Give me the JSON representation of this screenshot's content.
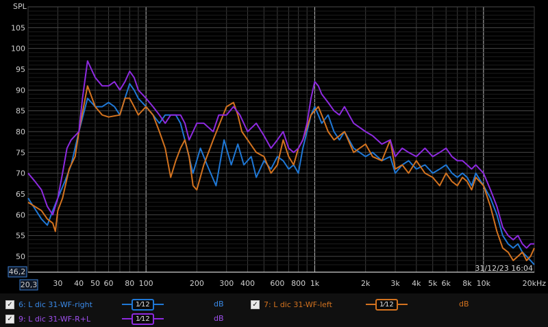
{
  "chart_data": {
    "type": "line",
    "ylabel": "SPL",
    "x_scale": "log",
    "xlim": [
      20,
      20000
    ],
    "ylim": [
      46.2,
      110
    ],
    "x_ticks": [
      {
        "v": 30,
        "label": "30"
      },
      {
        "v": 40,
        "label": "40"
      },
      {
        "v": 50,
        "label": "50"
      },
      {
        "v": 60,
        "label": "60"
      },
      {
        "v": 80,
        "label": "80"
      },
      {
        "v": 100,
        "label": "100"
      },
      {
        "v": 200,
        "label": "200"
      },
      {
        "v": 300,
        "label": "300"
      },
      {
        "v": 400,
        "label": "400"
      },
      {
        "v": 600,
        "label": "600"
      },
      {
        "v": 800,
        "label": "800"
      },
      {
        "v": 1000,
        "label": "1k"
      },
      {
        "v": 2000,
        "label": "2k"
      },
      {
        "v": 3000,
        "label": "3k"
      },
      {
        "v": 4000,
        "label": "4k"
      },
      {
        "v": 5000,
        "label": "5k"
      },
      {
        "v": 6000,
        "label": "6k"
      },
      {
        "v": 8000,
        "label": "8k"
      },
      {
        "v": 10000,
        "label": "10k"
      },
      {
        "v": 20000,
        "label": "20kHz"
      }
    ],
    "y_ticks": [
      50,
      55,
      60,
      65,
      70,
      75,
      80,
      85,
      90,
      95,
      100,
      105
    ],
    "x_min_label": "20,3",
    "y_min_label": "46,2",
    "timestamp": "31/12/23 16:04",
    "grid": true,
    "series": [
      {
        "name": "6: L dic 31-WF-right",
        "color": "#1f78d6",
        "points": [
          [
            20,
            64
          ],
          [
            24,
            59
          ],
          [
            26,
            57.5
          ],
          [
            28,
            61
          ],
          [
            30,
            64
          ],
          [
            33,
            68
          ],
          [
            36,
            72
          ],
          [
            40,
            80
          ],
          [
            45,
            88
          ],
          [
            50,
            86
          ],
          [
            55,
            86
          ],
          [
            60,
            87
          ],
          [
            65,
            86
          ],
          [
            70,
            84
          ],
          [
            75,
            88
          ],
          [
            80,
            91.5
          ],
          [
            85,
            90
          ],
          [
            90,
            88
          ],
          [
            100,
            86
          ],
          [
            110,
            84
          ],
          [
            120,
            82
          ],
          [
            130,
            84
          ],
          [
            150,
            84
          ],
          [
            160,
            82
          ],
          [
            170,
            78
          ],
          [
            190,
            70
          ],
          [
            210,
            76
          ],
          [
            230,
            72
          ],
          [
            260,
            67
          ],
          [
            290,
            78
          ],
          [
            320,
            72
          ],
          [
            350,
            77
          ],
          [
            380,
            72
          ],
          [
            420,
            74
          ],
          [
            450,
            69
          ],
          [
            500,
            73
          ],
          [
            550,
            71
          ],
          [
            600,
            74
          ],
          [
            650,
            73
          ],
          [
            700,
            71
          ],
          [
            750,
            72
          ],
          [
            800,
            70
          ],
          [
            850,
            76
          ],
          [
            900,
            80
          ],
          [
            950,
            84
          ],
          [
            1000,
            86
          ],
          [
            1050,
            84
          ],
          [
            1100,
            82
          ],
          [
            1200,
            84
          ],
          [
            1300,
            80
          ],
          [
            1400,
            78
          ],
          [
            1500,
            80
          ],
          [
            1700,
            76
          ],
          [
            2000,
            74
          ],
          [
            2200,
            75
          ],
          [
            2500,
            73
          ],
          [
            2800,
            74
          ],
          [
            3000,
            70
          ],
          [
            3300,
            72
          ],
          [
            3600,
            73
          ],
          [
            4000,
            71
          ],
          [
            4500,
            72
          ],
          [
            5000,
            70
          ],
          [
            5500,
            71
          ],
          [
            6000,
            72
          ],
          [
            6500,
            70
          ],
          [
            7000,
            69
          ],
          [
            7500,
            70
          ],
          [
            8000,
            69
          ],
          [
            8500,
            67
          ],
          [
            9000,
            70
          ],
          [
            10000,
            67
          ],
          [
            11000,
            64
          ],
          [
            12000,
            60
          ],
          [
            13000,
            55
          ],
          [
            14000,
            53
          ],
          [
            15000,
            52
          ],
          [
            16000,
            53
          ],
          [
            17000,
            51
          ],
          [
            18000,
            50
          ],
          [
            19000,
            49
          ],
          [
            20000,
            48
          ]
        ]
      },
      {
        "name": "7: L dic 31-WF-left",
        "color": "#d4731f",
        "points": [
          [
            20,
            63
          ],
          [
            24,
            61
          ],
          [
            26,
            59
          ],
          [
            28,
            58
          ],
          [
            29,
            56
          ],
          [
            30,
            61
          ],
          [
            32,
            64
          ],
          [
            35,
            71
          ],
          [
            38,
            74
          ],
          [
            40,
            80
          ],
          [
            45,
            91
          ],
          [
            50,
            86
          ],
          [
            55,
            84
          ],
          [
            60,
            83.5
          ],
          [
            70,
            84
          ],
          [
            75,
            88
          ],
          [
            80,
            88
          ],
          [
            85,
            86
          ],
          [
            90,
            84
          ],
          [
            100,
            86
          ],
          [
            110,
            84
          ],
          [
            120,
            80
          ],
          [
            130,
            76
          ],
          [
            140,
            69
          ],
          [
            150,
            73
          ],
          [
            160,
            76
          ],
          [
            170,
            78
          ],
          [
            180,
            74
          ],
          [
            190,
            67
          ],
          [
            200,
            66
          ],
          [
            220,
            72
          ],
          [
            250,
            78
          ],
          [
            280,
            83
          ],
          [
            300,
            86
          ],
          [
            330,
            87
          ],
          [
            350,
            84
          ],
          [
            370,
            80
          ],
          [
            400,
            78
          ],
          [
            450,
            75
          ],
          [
            500,
            74
          ],
          [
            550,
            70
          ],
          [
            600,
            72
          ],
          [
            650,
            78
          ],
          [
            700,
            74
          ],
          [
            750,
            72
          ],
          [
            800,
            76
          ],
          [
            850,
            78
          ],
          [
            900,
            81
          ],
          [
            950,
            84
          ],
          [
            1000,
            85
          ],
          [
            1050,
            86
          ],
          [
            1100,
            84
          ],
          [
            1200,
            80
          ],
          [
            1300,
            78
          ],
          [
            1400,
            79
          ],
          [
            1500,
            80
          ],
          [
            1700,
            75
          ],
          [
            2000,
            77
          ],
          [
            2200,
            74
          ],
          [
            2500,
            73
          ],
          [
            2800,
            78
          ],
          [
            3000,
            71
          ],
          [
            3300,
            72
          ],
          [
            3600,
            70
          ],
          [
            4000,
            73
          ],
          [
            4500,
            70
          ],
          [
            5000,
            69
          ],
          [
            5500,
            67
          ],
          [
            6000,
            70
          ],
          [
            6500,
            68
          ],
          [
            7000,
            67
          ],
          [
            7500,
            69
          ],
          [
            8000,
            68
          ],
          [
            8500,
            66
          ],
          [
            9000,
            69
          ],
          [
            10000,
            67
          ],
          [
            11000,
            62
          ],
          [
            12000,
            56
          ],
          [
            13000,
            52
          ],
          [
            14000,
            51
          ],
          [
            15000,
            49
          ],
          [
            16000,
            50
          ],
          [
            17000,
            51
          ],
          [
            18000,
            49
          ],
          [
            19000,
            50
          ],
          [
            20000,
            52
          ]
        ]
      },
      {
        "name": "9: L dic 31-WF-R+L",
        "color": "#8e2ae0",
        "points": [
          [
            20,
            70
          ],
          [
            22,
            68
          ],
          [
            24,
            66
          ],
          [
            26,
            62
          ],
          [
            28,
            60
          ],
          [
            30,
            64
          ],
          [
            32,
            70
          ],
          [
            34,
            76
          ],
          [
            36,
            78
          ],
          [
            40,
            80
          ],
          [
            42,
            88
          ],
          [
            45,
            97
          ],
          [
            50,
            93
          ],
          [
            55,
            91
          ],
          [
            60,
            91
          ],
          [
            65,
            92
          ],
          [
            70,
            90
          ],
          [
            75,
            92
          ],
          [
            80,
            94.5
          ],
          [
            85,
            93
          ],
          [
            90,
            90
          ],
          [
            100,
            88
          ],
          [
            110,
            86
          ],
          [
            120,
            84
          ],
          [
            130,
            82
          ],
          [
            140,
            84
          ],
          [
            150,
            84
          ],
          [
            160,
            84
          ],
          [
            170,
            82
          ],
          [
            180,
            78
          ],
          [
            190,
            80
          ],
          [
            200,
            82
          ],
          [
            220,
            82
          ],
          [
            250,
            80
          ],
          [
            270,
            84
          ],
          [
            300,
            84
          ],
          [
            330,
            86
          ],
          [
            360,
            84
          ],
          [
            400,
            80
          ],
          [
            450,
            82
          ],
          [
            500,
            79
          ],
          [
            550,
            76
          ],
          [
            600,
            78
          ],
          [
            650,
            80
          ],
          [
            700,
            76
          ],
          [
            750,
            75
          ],
          [
            800,
            76
          ],
          [
            850,
            78
          ],
          [
            900,
            82
          ],
          [
            950,
            88
          ],
          [
            1000,
            92
          ],
          [
            1050,
            91
          ],
          [
            1100,
            89
          ],
          [
            1200,
            87
          ],
          [
            1300,
            85
          ],
          [
            1400,
            84
          ],
          [
            1500,
            86
          ],
          [
            1700,
            82
          ],
          [
            2000,
            80
          ],
          [
            2200,
            79
          ],
          [
            2500,
            77
          ],
          [
            2800,
            78
          ],
          [
            3000,
            74
          ],
          [
            3300,
            76
          ],
          [
            3600,
            75
          ],
          [
            4000,
            74
          ],
          [
            4500,
            76
          ],
          [
            5000,
            74
          ],
          [
            5500,
            75
          ],
          [
            6000,
            76
          ],
          [
            6500,
            74
          ],
          [
            7000,
            73
          ],
          [
            7500,
            73
          ],
          [
            8000,
            72
          ],
          [
            8500,
            71
          ],
          [
            9000,
            72
          ],
          [
            10000,
            70
          ],
          [
            11000,
            66
          ],
          [
            12000,
            62
          ],
          [
            13000,
            57
          ],
          [
            14000,
            55
          ],
          [
            15000,
            54
          ],
          [
            16000,
            55
          ],
          [
            17000,
            53
          ],
          [
            18000,
            52
          ],
          [
            19000,
            53
          ],
          [
            20000,
            53
          ]
        ]
      }
    ]
  },
  "legend": [
    {
      "name": "6: L dic 31-WF-right",
      "checked": "✓",
      "smoothing": "1⁄12",
      "unit": "dB",
      "color": "#1f78d6"
    },
    {
      "name": "7: L dic 31-WF-left",
      "checked": "✓",
      "smoothing": "1⁄12",
      "unit": "dB",
      "color": "#d4731f"
    },
    {
      "name": "9: L dic 31-WF-R+L",
      "checked": "✓",
      "smoothing": "1⁄12",
      "unit": "dB",
      "color": "#8e2ae0"
    }
  ]
}
